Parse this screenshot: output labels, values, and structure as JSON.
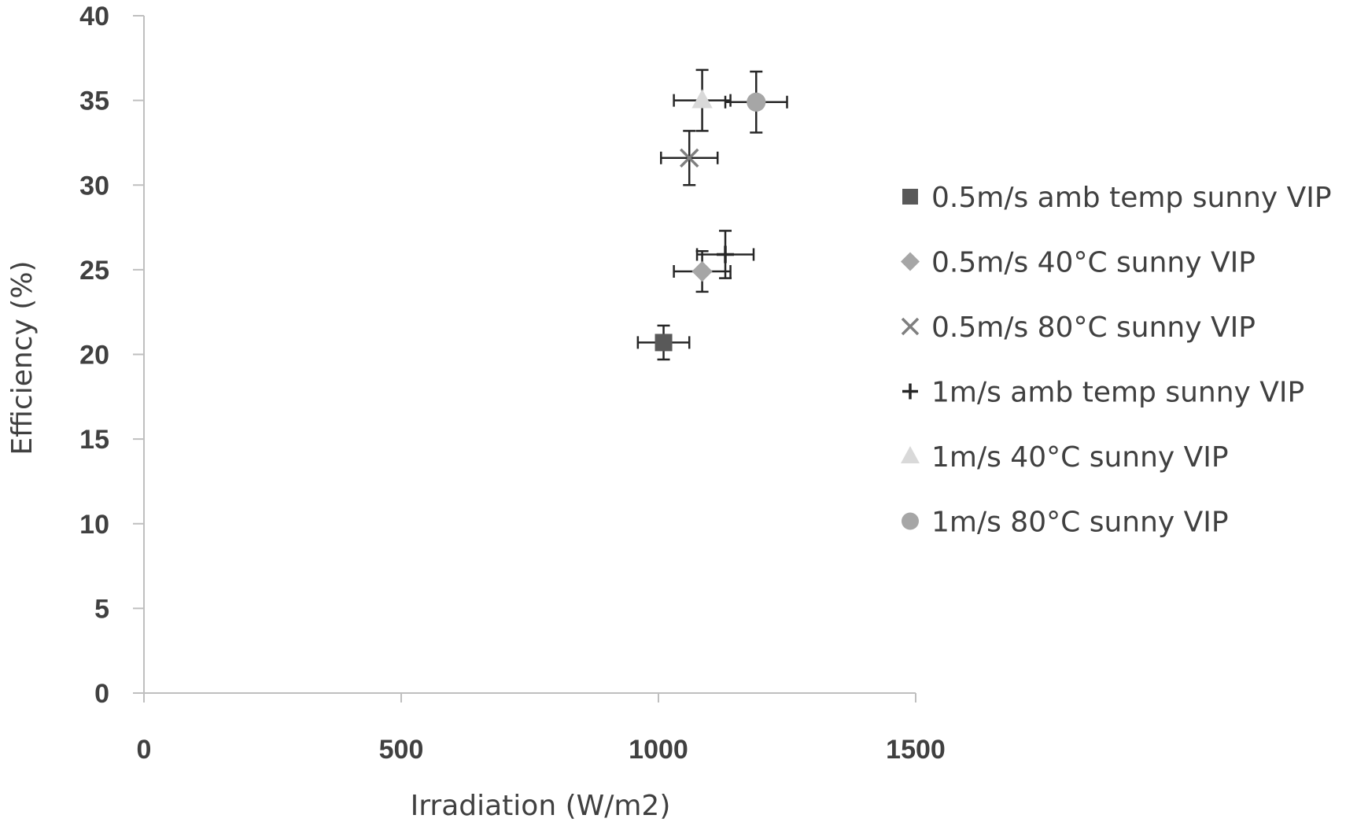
{
  "chart_data": {
    "type": "scatter",
    "title": "",
    "xlabel": "Irradiation (W/m2)",
    "ylabel": "Efficiency (%)",
    "xlim": [
      0,
      1500
    ],
    "ylim": [
      0,
      40
    ],
    "xticks": [
      0,
      500,
      1000,
      1500
    ],
    "yticks": [
      0,
      5,
      10,
      15,
      20,
      25,
      30,
      35,
      40
    ],
    "grid": false,
    "legend_position": "right",
    "series": [
      {
        "name": "0.5m/s amb temp sunny VIP",
        "marker": "square",
        "color": "#595959",
        "points": [
          {
            "x": 1010,
            "y": 20.7,
            "xerr": 50,
            "yerr": 1.0
          }
        ]
      },
      {
        "name": "0.5m/s 40°C sunny VIP",
        "marker": "diamond",
        "color": "#a6a6a6",
        "points": [
          {
            "x": 1085,
            "y": 24.9,
            "xerr": 55,
            "yerr": 1.2
          }
        ]
      },
      {
        "name": "0.5m/s 80°C sunny VIP",
        "marker": "x",
        "color": "#7f7f7f",
        "points": [
          {
            "x": 1060,
            "y": 31.6,
            "xerr": 55,
            "yerr": 1.6
          }
        ]
      },
      {
        "name": "1m/s amb temp sunny VIP",
        "marker": "plus",
        "color": "#262626",
        "points": [
          {
            "x": 1130,
            "y": 25.9,
            "xerr": 55,
            "yerr": 1.4
          }
        ]
      },
      {
        "name": "1m/s 40°C sunny VIP",
        "marker": "triangle",
        "color": "#d9d9d9",
        "points": [
          {
            "x": 1085,
            "y": 35.0,
            "xerr": 55,
            "yerr": 1.8
          }
        ]
      },
      {
        "name": "1m/s 80°C sunny VIP",
        "marker": "circle",
        "color": "#a6a6a6",
        "points": [
          {
            "x": 1190,
            "y": 34.9,
            "xerr": 60,
            "yerr": 1.8
          }
        ]
      }
    ]
  }
}
